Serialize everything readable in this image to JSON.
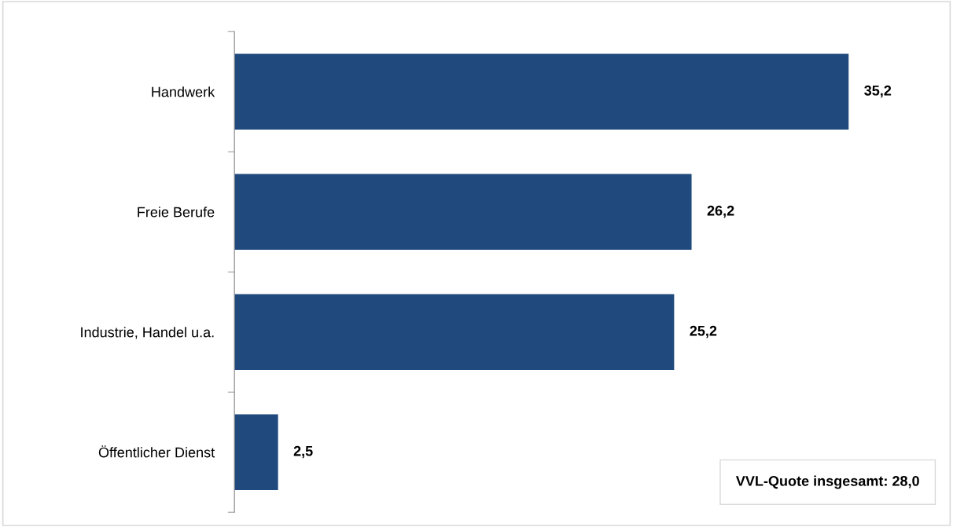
{
  "chart_data": {
    "type": "bar",
    "orientation": "horizontal",
    "categories": [
      "Handwerk",
      "Freie Berufe",
      "Industrie, Handel u.a.",
      "Öffentlicher Dienst"
    ],
    "values": [
      35.2,
      26.2,
      25.2,
      2.5
    ],
    "value_labels": [
      "35,2",
      "26,2",
      "25,2",
      "2,5"
    ],
    "color": "#204a7d",
    "grid": false,
    "legend": false,
    "annotations": [
      "VVL-Quote insgesamt: 28,0"
    ]
  }
}
